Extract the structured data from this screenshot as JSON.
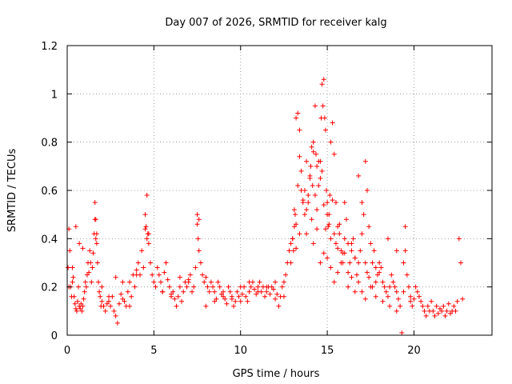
{
  "chart_data": {
    "type": "scatter",
    "title": "Day 007 of 2026, SRMTID for receiver kalg",
    "xlabel": "GPS time / hours",
    "ylabel": "SRMTID / TECUs",
    "xlim": [
      0,
      24.5
    ],
    "ylim": [
      0,
      1.2
    ],
    "x_ticks": [
      0,
      5,
      10,
      15,
      20
    ],
    "x_tick_labels": [
      "0",
      "5",
      "10",
      "15",
      "20"
    ],
    "y_ticks": [
      0,
      0.2,
      0.4,
      0.6,
      0.8,
      1.0,
      1.2
    ],
    "y_tick_labels": [
      "0",
      "0.2",
      "0.4",
      "0.6",
      "0.8",
      "1",
      "1.2"
    ],
    "grid": true,
    "marker": "plus",
    "series_color": "#ff0000",
    "series": [
      {
        "name": "SRMTID",
        "x": [
          0.05,
          0.1,
          0.15,
          0.2,
          0.25,
          0.3,
          0.35,
          0.4,
          0.45,
          0.5,
          0.55,
          0.6,
          0.65,
          0.7,
          0.75,
          0.8,
          0.85,
          0.9,
          0.95,
          1.0,
          1.05,
          1.1,
          1.15,
          1.2,
          1.25,
          1.3,
          1.35,
          1.4,
          1.45,
          1.5,
          1.55,
          1.6,
          1.65,
          1.7,
          1.75,
          1.8,
          1.85,
          1.9,
          1.95,
          2.0,
          2.1,
          2.2,
          2.3,
          2.4,
          2.5,
          2.6,
          2.7,
          2.8,
          2.9,
          3.0,
          3.1,
          3.2,
          3.3,
          3.4,
          3.5,
          3.6,
          3.7,
          3.8,
          3.9,
          4.0,
          4.1,
          4.2,
          4.3,
          4.4,
          4.5,
          4.55,
          4.6,
          4.65,
          4.7,
          4.8,
          4.9,
          5.0,
          5.1,
          5.2,
          5.3,
          5.4,
          5.5,
          5.6,
          5.7,
          5.8,
          5.9,
          6.0,
          6.1,
          6.2,
          6.3,
          6.4,
          6.5,
          6.6,
          6.7,
          6.8,
          6.9,
          7.0,
          7.1,
          7.2,
          7.3,
          7.4,
          7.5,
          7.55,
          7.6,
          7.7,
          7.8,
          7.9,
          8.0,
          8.1,
          8.2,
          8.3,
          8.4,
          8.5,
          8.6,
          8.7,
          8.8,
          8.9,
          9.0,
          9.1,
          9.2,
          9.3,
          9.4,
          9.5,
          9.6,
          9.7,
          9.8,
          9.9,
          10.0,
          10.1,
          10.2,
          10.3,
          10.4,
          10.5,
          10.6,
          10.7,
          10.8,
          10.9,
          11.0,
          11.1,
          11.2,
          11.3,
          11.4,
          11.5,
          11.6,
          11.7,
          11.8,
          11.9,
          12.0,
          12.1,
          12.2,
          12.3,
          12.4,
          12.5,
          12.6,
          12.7,
          12.8,
          12.9,
          13.0,
          13.05,
          13.1,
          13.15,
          13.2,
          13.3,
          13.4,
          13.5,
          13.6,
          13.7,
          13.8,
          13.9,
          14.0,
          14.05,
          14.1,
          14.15,
          14.2,
          14.3,
          14.35,
          14.4,
          14.5,
          14.6,
          14.65,
          14.7,
          14.75,
          14.8,
          14.85,
          14.9,
          14.95,
          15.0,
          15.05,
          15.1,
          15.15,
          15.2,
          15.3,
          15.4,
          15.5,
          15.6,
          15.7,
          15.8,
          15.9,
          16.0,
          16.1,
          16.2,
          16.3,
          16.4,
          16.5,
          16.6,
          16.7,
          16.8,
          16.9,
          17.0,
          17.1,
          17.2,
          17.3,
          17.4,
          17.5,
          17.6,
          17.7,
          17.8,
          17.9,
          18.0,
          18.1,
          18.2,
          18.3,
          18.4,
          18.5,
          18.6,
          18.7,
          18.8,
          18.9,
          19.0,
          19.1,
          19.2,
          19.3,
          19.4,
          19.5,
          19.6,
          19.7,
          19.8,
          19.9,
          20.0,
          20.1,
          20.2,
          20.3,
          20.4,
          20.5,
          20.6,
          20.7,
          20.8,
          20.9,
          21.0,
          21.1,
          21.2,
          21.3,
          21.4,
          21.5,
          21.6,
          21.7,
          21.8,
          21.9,
          22.0,
          22.1,
          22.2,
          22.3,
          22.4,
          22.5,
          22.6,
          22.7,
          22.8,
          0.1,
          0.3,
          0.5,
          0.7,
          0.9,
          1.6,
          1.65,
          1.7,
          4.5,
          4.6,
          4.7,
          7.5,
          7.6,
          12.9,
          13.0,
          13.1,
          13.2,
          13.3,
          13.4,
          13.5,
          13.6,
          13.7,
          13.8,
          13.9,
          14.0,
          14.1,
          14.2,
          14.3,
          14.4,
          14.5,
          14.6,
          14.7,
          14.8,
          14.9,
          15.0,
          15.1,
          15.2,
          15.3,
          15.4,
          15.5,
          15.6,
          15.7,
          15.8,
          15.9,
          16.0,
          16.2,
          16.4,
          16.6,
          16.8,
          17.0,
          17.2,
          17.3,
          17.4,
          17.6,
          17.8,
          18.0,
          18.5,
          19.0,
          19.5,
          13.2,
          13.4,
          13.8,
          14.2,
          14.4,
          14.6,
          14.8,
          15.0,
          15.2,
          15.4,
          15.6,
          15.8,
          16.0,
          16.2,
          16.4,
          16.6,
          16.8,
          17.0,
          17.2,
          17.5,
          17.8,
          18.2,
          18.6,
          19.0,
          19.4,
          19.8,
          2.0,
          2.4,
          2.8,
          3.2,
          3.6,
          4.0,
          5.5,
          6.0,
          6.5,
          7.0,
          8.0,
          8.5,
          9.0,
          9.5,
          10.0,
          10.5,
          11.0,
          11.5,
          12.0,
          12.5
        ],
        "y": [
          0.28,
          0.44,
          0.35,
          0.2,
          0.16,
          0.28,
          0.24,
          0.16,
          0.13,
          0.11,
          0.1,
          0.14,
          0.2,
          0.12,
          0.11,
          0.13,
          0.1,
          0.12,
          0.15,
          0.18,
          0.22,
          0.2,
          0.25,
          0.3,
          0.26,
          0.35,
          0.3,
          0.22,
          0.28,
          0.34,
          0.42,
          0.48,
          0.4,
          0.38,
          0.3,
          0.22,
          0.18,
          0.16,
          0.12,
          0.14,
          0.12,
          0.1,
          0.13,
          0.14,
          0.12,
          0.16,
          0.1,
          0.08,
          0.05,
          0.13,
          0.17,
          0.15,
          0.14,
          0.12,
          0.18,
          0.22,
          0.16,
          0.25,
          0.2,
          0.27,
          0.3,
          0.25,
          0.35,
          0.28,
          0.5,
          0.45,
          0.58,
          0.42,
          0.38,
          0.3,
          0.25,
          0.22,
          0.2,
          0.28,
          0.25,
          0.22,
          0.18,
          0.26,
          0.3,
          0.23,
          0.2,
          0.17,
          0.18,
          0.15,
          0.12,
          0.16,
          0.2,
          0.14,
          0.18,
          0.22,
          0.2,
          0.23,
          0.25,
          0.18,
          0.2,
          0.28,
          0.46,
          0.4,
          0.35,
          0.3,
          0.25,
          0.22,
          0.24,
          0.2,
          0.18,
          0.22,
          0.2,
          0.18,
          0.15,
          0.22,
          0.2,
          0.17,
          0.18,
          0.15,
          0.13,
          0.2,
          0.18,
          0.16,
          0.12,
          0.14,
          0.18,
          0.16,
          0.14,
          0.17,
          0.2,
          0.16,
          0.14,
          0.18,
          0.2,
          0.22,
          0.19,
          0.17,
          0.2,
          0.22,
          0.18,
          0.2,
          0.16,
          0.18,
          0.2,
          0.17,
          0.2,
          0.19,
          0.15,
          0.17,
          0.12,
          0.16,
          0.2,
          0.22,
          0.25,
          0.3,
          0.35,
          0.38,
          0.4,
          0.35,
          0.45,
          0.5,
          0.9,
          0.92,
          0.85,
          0.6,
          0.55,
          0.5,
          0.42,
          0.55,
          0.65,
          0.7,
          0.78,
          0.62,
          0.8,
          0.95,
          0.75,
          0.7,
          0.72,
          0.65,
          0.9,
          1.04,
          0.95,
          1.06,
          0.9,
          0.85,
          0.6,
          0.55,
          0.45,
          0.5,
          0.58,
          0.8,
          0.88,
          0.75,
          0.55,
          0.45,
          0.42,
          0.35,
          0.3,
          0.55,
          0.48,
          0.38,
          0.3,
          0.35,
          0.4,
          0.32,
          0.25,
          0.3,
          0.35,
          0.42,
          0.5,
          0.72,
          0.6,
          0.45,
          0.38,
          0.3,
          0.35,
          0.28,
          0.25,
          0.3,
          0.28,
          0.22,
          0.2,
          0.18,
          0.16,
          0.2,
          0.25,
          0.22,
          0.2,
          0.18,
          0.15,
          0.12,
          0.01,
          0.3,
          0.35,
          0.25,
          0.2,
          0.16,
          0.12,
          0.15,
          0.2,
          0.18,
          0.16,
          0.14,
          0.12,
          0.1,
          0.08,
          0.12,
          0.1,
          0.14,
          0.1,
          0.08,
          0.12,
          0.09,
          0.11,
          0.1,
          0.12,
          0.08,
          0.1,
          0.13,
          0.09,
          0.1,
          0.12,
          0.1,
          0.14,
          0.4,
          0.3,
          0.15,
          0.2,
          0.22,
          0.45,
          0.38,
          0.36,
          0.55,
          0.48,
          0.42,
          0.44,
          0.4,
          0.42,
          0.5,
          0.48,
          0.3,
          0.4,
          0.52,
          0.46,
          0.62,
          0.74,
          0.68,
          0.56,
          0.6,
          0.72,
          0.58,
          0.66,
          0.48,
          0.76,
          0.58,
          0.52,
          0.62,
          0.72,
          0.68,
          0.54,
          0.44,
          0.5,
          0.46,
          0.4,
          0.56,
          0.42,
          0.38,
          0.36,
          0.46,
          0.3,
          0.34,
          0.4,
          0.26,
          0.38,
          0.32,
          0.66,
          0.55,
          0.3,
          0.26,
          0.24,
          0.2,
          0.22,
          0.26,
          0.4,
          0.35,
          0.45,
          0.36,
          0.42,
          0.52,
          0.38,
          0.44,
          0.3,
          0.34,
          0.32,
          0.28,
          0.22,
          0.26,
          0.3,
          0.34,
          0.2,
          0.24,
          0.18,
          0.22,
          0.18,
          0.15,
          0.2,
          0.16,
          0.14,
          0.12,
          0.1,
          0.18,
          0.14,
          0.2,
          0.16,
          0.24,
          0.22,
          0.12,
          0.25,
          0.18,
          0.16,
          0.24,
          0.22,
          0.12,
          0.14,
          0.16,
          0.15,
          0.2,
          0.22,
          0.18,
          0.2,
          0.22,
          0.16
        ]
      }
    ]
  }
}
